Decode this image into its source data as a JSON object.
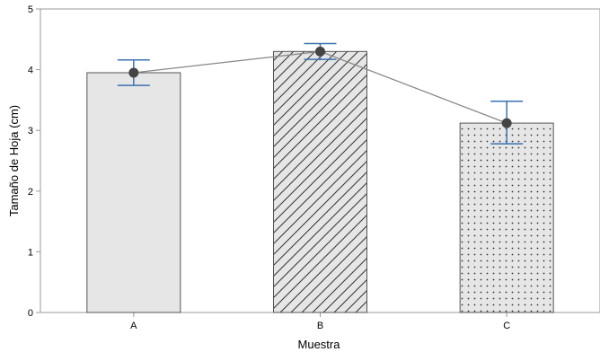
{
  "chart_data": {
    "type": "bar",
    "title": "",
    "xlabel": "Muestra",
    "ylabel": "Tamaño de Hoja (cm)",
    "categories": [
      "A",
      "B",
      "C"
    ],
    "values": [
      3.95,
      4.3,
      3.12
    ],
    "error_low": [
      3.74,
      4.17,
      2.78
    ],
    "error_high": [
      4.16,
      4.43,
      3.48
    ],
    "ylim": [
      0,
      5
    ],
    "yticks": [
      "0",
      "1",
      "2",
      "3",
      "4",
      "5"
    ],
    "patterns": [
      "solid",
      "diagonal-hatch",
      "dots"
    ],
    "mean_line": true,
    "grid": false,
    "colors": {
      "bar_fill": "#e6e6e6",
      "bar_stroke": "#555555",
      "error_bar": "#3a72b0",
      "mean_marker": "#444444",
      "mean_line": "#888888",
      "axis": "#999999"
    }
  }
}
